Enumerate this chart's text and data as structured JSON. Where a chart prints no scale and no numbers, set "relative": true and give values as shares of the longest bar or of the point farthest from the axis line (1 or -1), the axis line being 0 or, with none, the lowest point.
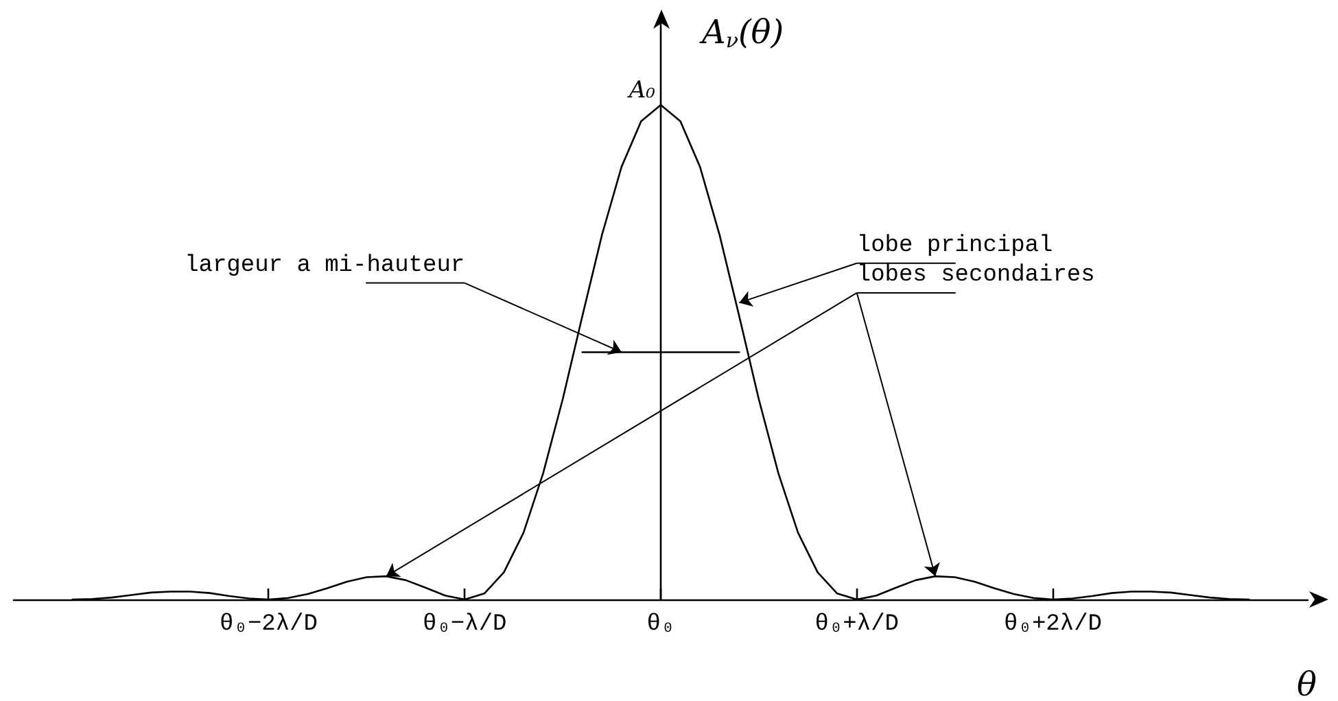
{
  "chart_data": {
    "type": "line",
    "relative": true,
    "xlabel": "θ",
    "ylabel": "A$_{ν}$(θ)",
    "categories": [
      null,
      null,
      null,
      null,
      null,
      null,
      null,
      null,
      null,
      null,
      null,
      null,
      null,
      "θ₀−2λ/D",
      null,
      null,
      null,
      null,
      null,
      null,
      null,
      null,
      null,
      "θ₀−λ/D",
      null,
      null,
      null,
      null,
      null,
      null,
      null,
      null,
      null,
      "θ₀",
      null,
      null,
      null,
      null,
      null,
      null,
      null,
      null,
      null,
      "θ₀+λ/D",
      null,
      null,
      null,
      null,
      null,
      null,
      null,
      null,
      null,
      "θ₀+2λ/D",
      null,
      null,
      null,
      null,
      null,
      null,
      null,
      null,
      null,
      null,
      null,
      null,
      null
    ],
    "series": [
      {
        "color": "#000000",
        "values": [
          null,
          null,
          null,
          0,
          0.001,
          0.004,
          0.009,
          0.014,
          0.016,
          0.016,
          0.013,
          0.007,
          0.002,
          0,
          0.003,
          0.011,
          0.023,
          0.036,
          0.045,
          0.047,
          0.039,
          0.024,
          0.008,
          0,
          0.012,
          0.055,
          0.135,
          0.255,
          0.405,
          0.573,
          0.737,
          0.875,
          0.967,
          1,
          0.967,
          0.875,
          0.737,
          0.573,
          0.405,
          0.255,
          0.135,
          0.055,
          0.012,
          0,
          0.008,
          0.024,
          0.039,
          0.047,
          0.045,
          0.036,
          0.023,
          0.011,
          0.003,
          0,
          0.002,
          0.007,
          0.013,
          0.016,
          0.016,
          0.014,
          0.009,
          0.004,
          0.001,
          0,
          null,
          null,
          null
        ]
      },
      {
        "color": "#000000",
        "values": [
          null,
          null,
          null,
          null,
          null,
          null,
          null,
          null,
          null,
          null,
          null,
          null,
          null,
          null,
          null,
          null,
          null,
          null,
          null,
          null,
          null,
          null,
          null,
          null,
          null,
          null,
          null,
          null,
          null,
          0.5,
          0.5,
          0.5,
          0.5,
          0.5,
          0.5,
          0.5,
          0.5,
          0.5,
          null,
          null,
          null,
          null,
          null,
          null,
          null,
          null,
          null,
          null,
          null,
          null,
          null,
          null,
          null,
          null,
          null,
          null,
          null,
          null,
          null,
          null,
          null,
          null,
          null,
          null,
          null,
          null,
          null
        ]
      }
    ],
    "annotations": [
      "largeur a mi-hauteur",
      "lobe principal",
      "lobes secondaires",
      {
        "text": "A₀",
        "x": "θ₀",
        "y": 1
      }
    ],
    "grid": false,
    "marker": "none",
    "line_style": "solid"
  }
}
